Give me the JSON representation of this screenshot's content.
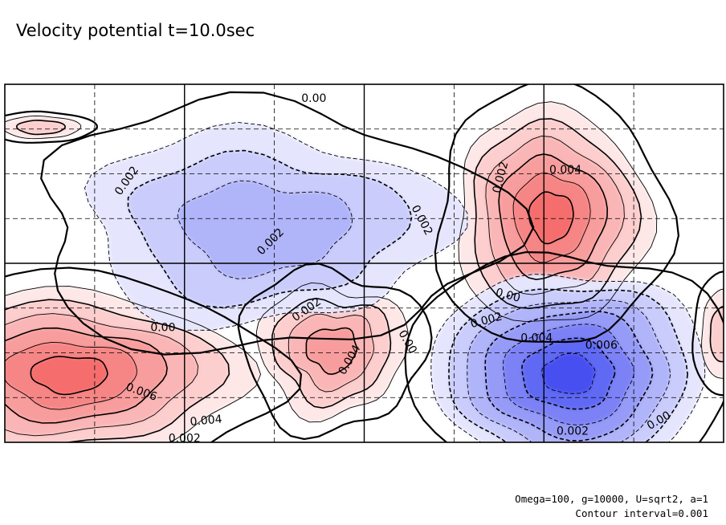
{
  "chart_data": {
    "type": "contour",
    "title": "Velocity potential t=10.0sec",
    "notes": [
      "Omega=100, g=10000, U=sqrt2, a=1",
      "Contour interval=0.001"
    ],
    "contour_interval": 0.001,
    "value_range": [
      -0.007,
      0.007
    ],
    "colormap": {
      "negative": "#3a44f0",
      "zero": "#ffffff",
      "positive": "#f24848"
    },
    "dashed_negative_contours": true,
    "grid": true,
    "centers": [
      {
        "sign": "positive",
        "peak": 0.0065,
        "region": "lower-left"
      },
      {
        "sign": "positive",
        "peak": 0.0045,
        "region": "lower-center-left"
      },
      {
        "sign": "positive",
        "peak": 0.0068,
        "region": "upper-center-right"
      },
      {
        "sign": "positive",
        "peak": 0.002,
        "region": "upper-left"
      },
      {
        "sign": "positive",
        "peak": 0.002,
        "region": "right edge"
      },
      {
        "sign": "negative",
        "peak": -0.0075,
        "region": "lower-center-right"
      },
      {
        "sign": "negative",
        "peak": -0.003,
        "region": "upper-center"
      }
    ],
    "contour_labels": [
      {
        "text": "0.00"
      },
      {
        "text": "0.002"
      },
      {
        "text": "0.002"
      },
      {
        "text": "0.002"
      },
      {
        "text": "0.002"
      },
      {
        "text": "0.004"
      },
      {
        "text": "0.00"
      },
      {
        "text": "0.002"
      },
      {
        "text": "0.004"
      },
      {
        "text": "0.006"
      },
      {
        "text": "0.004"
      },
      {
        "text": "0.002"
      },
      {
        "text": "0.00"
      },
      {
        "text": "0.002"
      },
      {
        "text": "0.004"
      },
      {
        "text": "0.006"
      },
      {
        "text": "0.002"
      },
      {
        "text": "0.00"
      },
      {
        "text": "0.00"
      }
    ]
  }
}
